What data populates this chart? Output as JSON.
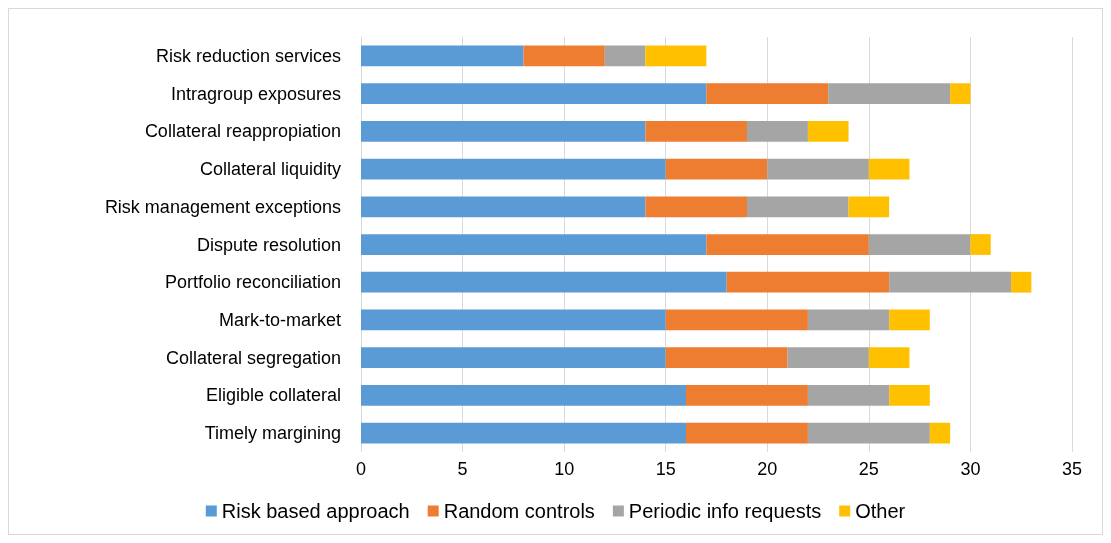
{
  "chart_data": {
    "type": "bar",
    "orientation": "horizontal",
    "stacked": true,
    "categories": [
      "Risk reduction services",
      "Intragroup exposures",
      "Collateral reappropiation",
      "Collateral liquidity",
      "Risk management exceptions",
      "Dispute resolution",
      "Portfolio reconciliation",
      "Mark-to-market",
      "Collateral segregation",
      "Eligible collateral",
      "Timely margining"
    ],
    "series": [
      {
        "name": "Risk based approach",
        "color": "#5b9bd5",
        "values": [
          8,
          17,
          14,
          15,
          14,
          17,
          18,
          15,
          15,
          16,
          16
        ]
      },
      {
        "name": "Random controls",
        "color": "#ed7d31",
        "values": [
          4,
          6,
          5,
          5,
          5,
          8,
          8,
          7,
          6,
          6,
          6
        ]
      },
      {
        "name": "Periodic info requests",
        "color": "#a5a5a5",
        "values": [
          2,
          6,
          3,
          5,
          5,
          5,
          6,
          4,
          4,
          4,
          6
        ]
      },
      {
        "name": "Other",
        "color": "#ffc000",
        "values": [
          3,
          1,
          2,
          2,
          2,
          1,
          1,
          2,
          2,
          2,
          1
        ]
      }
    ],
    "xlim": [
      0,
      35
    ],
    "xticks": [
      0,
      5,
      10,
      15,
      20,
      25,
      30,
      35
    ],
    "grid": "x",
    "legend": "bottom"
  }
}
